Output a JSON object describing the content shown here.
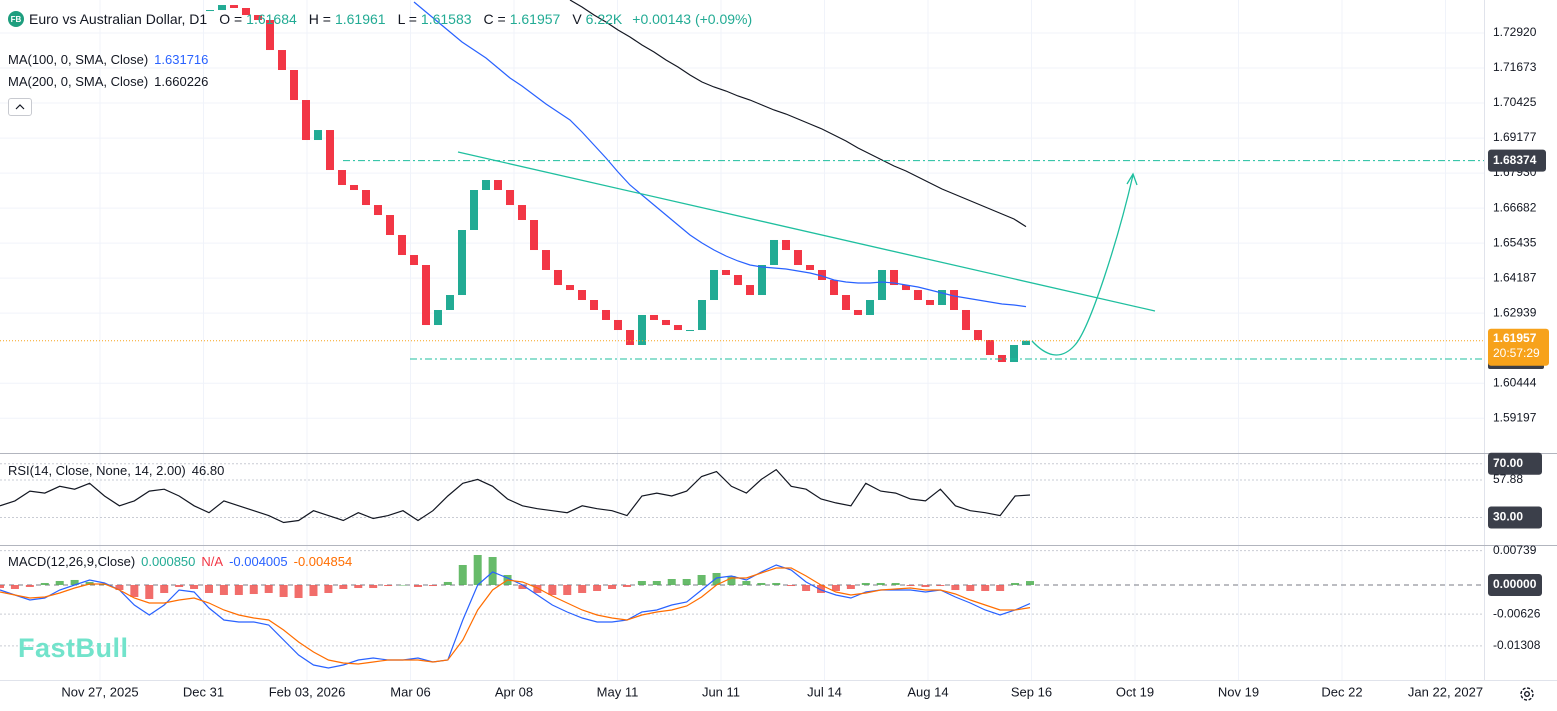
{
  "header": {
    "badge": "FB",
    "ohlc": [
      {
        "label": "O =",
        "value": "1.61684"
      },
      {
        "label": "H =",
        "value": "1.61961"
      },
      {
        "label": "L =",
        "value": "1.61583"
      },
      {
        "label": "C =",
        "value": "1.61957"
      },
      {
        "label": "V",
        "value": "6.22K"
      }
    ],
    "change": "+0.00143 (+0.09%)"
  },
  "watermark": "FastBull",
  "chart_data": [
    {
      "type": "candlestick",
      "title": "Euro vs Australian Dollar, D1",
      "x_labels": [
        "Nov 27, 2025",
        "Dec 31",
        "Feb 03, 2026",
        "Mar 06",
        "Apr 08",
        "May 11",
        "Jun 11",
        "Jul 14",
        "Aug 14",
        "Sep 16",
        "Oct 19",
        "Nov 19",
        "Dec 22",
        "Jan 22, 2027"
      ],
      "ylim": [
        1.57993,
        1.74096
      ],
      "yticks": [
        {
          "value": 1.7292,
          "label": "1.72920"
        },
        1.71673,
        1.70425,
        1.69177,
        {
          "value": 1.6793,
          "label": "1.67930"
        },
        1.66682,
        1.65435,
        1.64187,
        1.62939,
        1.60444,
        1.59197
      ],
      "grid": true,
      "up_color": "#22ab94",
      "down_color": "#f23645",
      "closes": [
        1.73739,
        1.73917,
        1.73811,
        1.73561,
        1.73383,
        1.72314,
        1.71602,
        1.70533,
        1.69108,
        1.69464,
        1.68039,
        1.67505,
        1.67327,
        1.66792,
        1.66436,
        1.65724,
        1.65011,
        1.64655,
        1.62517,
        1.63052,
        1.63586,
        1.65902,
        1.67327,
        1.67683,
        1.67327,
        1.66792,
        1.66258,
        1.65189,
        1.64477,
        1.63942,
        1.63764,
        1.63408,
        1.63052,
        1.62696,
        1.62339,
        1.61805,
        1.62874,
        1.62696,
        1.62517,
        1.62339,
        1.62339,
        1.63408,
        1.64477,
        1.64299,
        1.63942,
        1.63586,
        1.64655,
        1.65546,
        1.65189,
        1.64655,
        1.64477,
        1.64121,
        1.63586,
        1.63052,
        1.62874,
        1.63408,
        1.64477,
        1.63942,
        1.63764,
        1.63408,
        1.6323,
        1.63764,
        1.63052,
        1.62339,
        1.61983,
        1.61449,
        1.61199,
        1.61805,
        1.61957
      ],
      "series": [
        {
          "name": "MA(100, 0, SMA, Close)",
          "color": "#2962ff",
          "last_label": "1.631716",
          "values": [
            null,
            null,
            null,
            null,
            null,
            null,
            null,
            null,
            null,
            null,
            null,
            null,
            null,
            null,
            null,
            null,
            null,
            1.74024,
            1.73668,
            1.73312,
            1.72956,
            1.72599,
            1.72314,
            1.72029,
            1.71673,
            1.71317,
            1.71032,
            1.70711,
            1.70391,
            1.70106,
            1.69821,
            1.69393,
            1.6893,
            1.68467,
            1.67968,
            1.67505,
            1.67149,
            1.66792,
            1.66436,
            1.6608,
            1.65724,
            1.65439,
            1.65189,
            1.64976,
            1.64797,
            1.64655,
            1.64584,
            1.64548,
            1.64512,
            1.64441,
            1.6437,
            1.64263,
            1.64121,
            1.64049,
            1.64014,
            1.64014,
            1.64049,
            1.64014,
            1.63942,
            1.63871,
            1.63764,
            1.63657,
            1.63551,
            1.63479,
            1.63408,
            1.63337,
            1.63266,
            1.6323,
            1.631716
          ]
        },
        {
          "name": "MA(200, 0, SMA, Close)",
          "color": "#131722",
          "last_label": "1.660226",
          "values": [
            null,
            null,
            null,
            null,
            null,
            null,
            null,
            null,
            null,
            null,
            null,
            null,
            null,
            null,
            null,
            null,
            null,
            null,
            null,
            null,
            null,
            null,
            null,
            null,
            null,
            null,
            null,
            null,
            null,
            null,
            1.74096,
            1.73846,
            1.73561,
            1.73312,
            1.73027,
            1.72778,
            1.72492,
            1.72243,
            1.71958,
            1.71709,
            1.71424,
            1.71174,
            1.70996,
            1.70854,
            1.70676,
            1.70533,
            1.70355,
            1.70177,
            1.70034,
            1.69856,
            1.69678,
            1.695,
            1.69286,
            1.69072,
            1.68823,
            1.68609,
            1.68396,
            1.68182,
            1.68004,
            1.6779,
            1.67576,
            1.67362,
            1.67184,
            1.67006,
            1.66828,
            1.6665,
            1.66472,
            1.66294,
            1.660226
          ]
        }
      ],
      "resistance": 1.68374,
      "support": 1.61307,
      "level_color": "#1fbf9f",
      "last_price": {
        "value": 1.61957,
        "countdown": "20:57:29",
        "color": "#f7a21b"
      }
    },
    {
      "type": "line",
      "ylim": [
        9.6,
        76.5
      ],
      "yticks": [
        {
          "value": 70,
          "label": "70.00"
        },
        57.88,
        {
          "value": 30,
          "label": "30.00"
        }
      ],
      "series": [
        {
          "name": "RSI(14, Close, None, 14, 2.00)",
          "color": "#131722",
          "last_label": "46.80",
          "values": [
            38.73,
            42.36,
            49.64,
            48.18,
            53.27,
            51.09,
            55.45,
            46,
            38.73,
            42.36,
            49.64,
            51.09,
            46,
            38.73,
            33.64,
            42.36,
            38.73,
            35.09,
            31.45,
            26.36,
            27.82,
            35.09,
            31.45,
            27.82,
            33.64,
            29.27,
            31.45,
            35.09,
            27.82,
            35.09,
            46,
            55.45,
            58.36,
            53.27,
            43.82,
            38.73,
            36.55,
            35.09,
            33.64,
            38.73,
            36.55,
            35.09,
            31.45,
            46,
            48.18,
            46,
            49.64,
            60.55,
            64.18,
            53.27,
            48.18,
            58.36,
            65.64,
            53.27,
            51.09,
            43.82,
            40.91,
            38.73,
            55.45,
            49.64,
            48.18,
            43.82,
            42.36,
            51.09,
            38.73,
            35.09,
            33.64,
            31.45,
            46,
            46.8
          ]
        }
      ]
    },
    {
      "type": "macd",
      "title": "MACD(12,26,9,Close)",
      "ylim": [
        -0.02043,
        0.00817
      ],
      "yticks": [
        0.00739,
        {
          "value": 0,
          "label": "0.00000"
        },
        -0.00626,
        -0.01308
      ],
      "legend_values": [
        {
          "text": "0.000850",
          "color": "#22ab94"
        },
        {
          "text": "N/A",
          "color": "#f23645"
        },
        {
          "text": "-0.004005",
          "color": "#2962ff"
        },
        {
          "text": "-0.004854",
          "color": "#ff6d00"
        }
      ],
      "histogram": {
        "up_color": "#4caf50",
        "down_color": "#ef5350",
        "values": [
          -0.00065,
          -0.00086,
          -0.00043,
          0.00043,
          0.00086,
          0.00108,
          0.00065,
          0.00022,
          -0.00108,
          -0.00258,
          -0.00301,
          -0.00172,
          -0.00043,
          -0.00086,
          -0.00172,
          -0.00215,
          -0.00215,
          -0.00194,
          -0.00172,
          -0.00258,
          -0.0028,
          -0.00237,
          -0.00172,
          -0.00086,
          -0.00065,
          -0.00065,
          -0.00022,
          0,
          -0.00043,
          -0.00022,
          0.00065,
          0.0043,
          0.00645,
          0.00602,
          0.00215,
          -0.00086,
          -0.00172,
          -0.00215,
          -0.00215,
          -0.00172,
          -0.00129,
          -0.00086,
          -0.00043,
          0.00086,
          0.00086,
          0.00129,
          0.00129,
          0.00215,
          0.00258,
          0.00194,
          0.00086,
          0.00043,
          0.00043,
          -0.00022,
          -0.00129,
          -0.00172,
          -0.00129,
          -0.00086,
          0.00043,
          0.00043,
          0.00043,
          -0.00022,
          -0.00043,
          -0.00022,
          -0.00108,
          -0.00129,
          -0.00129,
          -0.00129,
          0.00043,
          0.00085
        ]
      },
      "series": [
        {
          "color": "#2962ff",
          "values": [
            -0.00108,
            -0.00215,
            -0.00323,
            -0.0028,
            -0.00108,
            0,
            0.00108,
            0.00043,
            -0.00108,
            -0.0043,
            -0.00645,
            -0.0043,
            -0.00108,
            -0.00151,
            -0.00495,
            -0.00753,
            -0.00796,
            -0.00796,
            -0.0086,
            -0.01183,
            -0.01505,
            -0.0172,
            -0.01785,
            -0.0172,
            -0.01613,
            -0.0157,
            -0.01613,
            -0.01613,
            -0.0157,
            -0.01656,
            -0.01613,
            -0.00753,
            0,
            0.0028,
            0.00151,
            0,
            -0.00215,
            -0.0043,
            -0.00581,
            -0.0071,
            -0.00796,
            -0.00796,
            -0.00753,
            -0.00581,
            -0.00538,
            -0.0043,
            -0.00366,
            -0.00108,
            0.00151,
            0.00194,
            0.00108,
            0.0028,
            0.0043,
            0.00323,
            0.00065,
            -0.00108,
            -0.00215,
            -0.0028,
            -0.00151,
            -0.00108,
            -0.00108,
            -0.00108,
            -0.00151,
            -0.00108,
            -0.00258,
            -0.00387,
            -0.00538,
            -0.00645,
            -0.00538,
            -0.004005
          ]
        },
        {
          "color": "#ff6d00",
          "values": [
            -0.00151,
            -0.00215,
            -0.0028,
            -0.00258,
            -0.00172,
            -0.00065,
            0.00022,
            0.00022,
            -0.00108,
            -0.0028,
            -0.00387,
            -0.00387,
            -0.00323,
            -0.0028,
            -0.00387,
            -0.00538,
            -0.00645,
            -0.0071,
            -0.00753,
            -0.00968,
            -0.01226,
            -0.01441,
            -0.01613,
            -0.01677,
            -0.01699,
            -0.01656,
            -0.01613,
            -0.01613,
            -0.01613,
            -0.01656,
            -0.01613,
            -0.01183,
            -0.00538,
            -0.00108,
            0.00108,
            0.00065,
            -0.00065,
            -0.00237,
            -0.00387,
            -0.00538,
            -0.00645,
            -0.0071,
            -0.00753,
            -0.00645,
            -0.00581,
            -0.00538,
            -0.00452,
            -0.00258,
            0,
            0.00151,
            0.00151,
            0.00258,
            0.00366,
            0.00366,
            0.00194,
            0,
            -0.00151,
            -0.00215,
            -0.00172,
            -0.00108,
            -0.00086,
            -0.00065,
            -0.00108,
            -0.00108,
            -0.00194,
            -0.00323,
            -0.0043,
            -0.00538,
            -0.00538,
            -0.004854
          ]
        }
      ]
    }
  ]
}
